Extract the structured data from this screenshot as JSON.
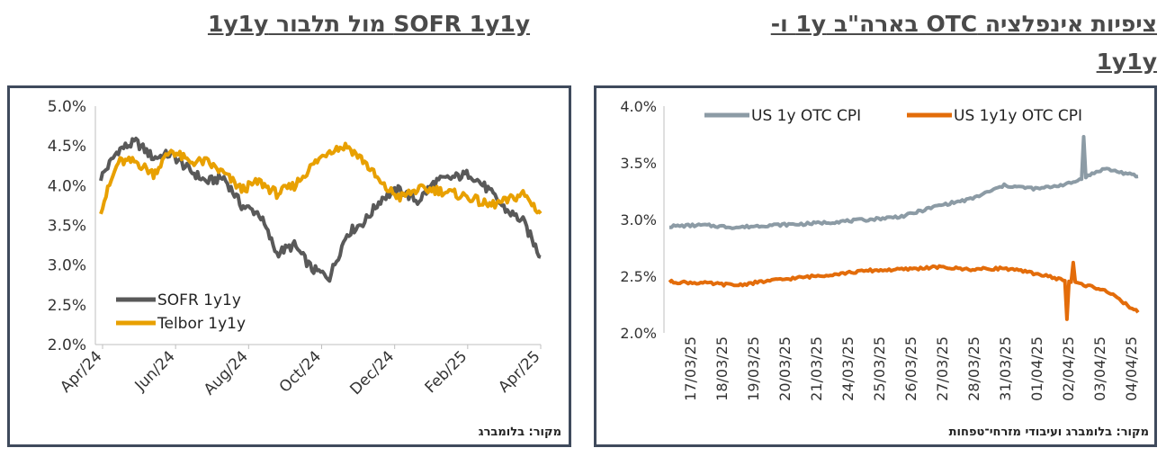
{
  "titles": {
    "left": "SOFR 1y1y מול תלבור 1y1y",
    "right_line1": "ציפיות אינפלציה OTC בארה\"ב 1y ו-",
    "right_line2": "1y1y"
  },
  "sources": {
    "left": "מקור: בלומברג",
    "right": "מקור: בלומברג ועיבודי מזרחי־טפחות"
  },
  "colors": {
    "gray": "#595959",
    "orange": "#E8A000",
    "blue_gray": "#8C9BA5",
    "dark_orange": "#E36C0A",
    "frame": "#3f4a5c"
  },
  "chart_data": [
    {
      "type": "line",
      "title": "SOFR 1y1y מול תלבור 1y1y",
      "x": [
        "2024-04-01",
        "2024-04-15",
        "2024-05-01",
        "2024-05-15",
        "2024-06-01",
        "2024-06-15",
        "2024-07-01",
        "2024-07-15",
        "2024-08-01",
        "2024-08-15",
        "2024-09-01",
        "2024-09-15",
        "2024-10-01",
        "2024-10-15",
        "2024-11-01",
        "2024-11-15",
        "2024-12-01",
        "2024-12-15",
        "2025-01-01",
        "2025-01-15",
        "2025-02-01",
        "2025-02-15",
        "2025-03-01",
        "2025-03-15",
        "2025-04-01",
        "2025-04-08"
      ],
      "x_ticks": [
        "Apr/24",
        "Jun/24",
        "Aug/24",
        "Oct/24",
        "Dec/24",
        "Feb/25",
        "Apr/25"
      ],
      "y_ticks": [
        "5.0%",
        "4.5%",
        "4.0%",
        "3.5%",
        "3.0%",
        "2.5%",
        "2.0%"
      ],
      "ylim": [
        2.0,
        5.0
      ],
      "legend": "left-bottom",
      "series": [
        {
          "name": "SOFR 1y1y",
          "color": "#595959",
          "values": [
            4.1,
            4.45,
            4.55,
            4.35,
            4.4,
            4.2,
            4.05,
            4.1,
            3.75,
            3.65,
            3.15,
            3.25,
            2.95,
            2.85,
            3.4,
            3.55,
            3.85,
            3.95,
            3.8,
            4.05,
            4.1,
            4.15,
            3.95,
            3.7,
            3.55,
            3.1
          ]
        },
        {
          "name": "Telbor 1y1y",
          "color": "#E8A000",
          "values": [
            3.7,
            4.3,
            4.3,
            4.15,
            4.45,
            4.3,
            4.3,
            4.15,
            3.95,
            4.05,
            3.9,
            4.0,
            4.25,
            4.45,
            4.5,
            4.3,
            4.0,
            3.85,
            3.95,
            3.95,
            3.9,
            3.85,
            3.75,
            3.8,
            3.9,
            3.65
          ]
        }
      ]
    },
    {
      "type": "line",
      "title": "ציפיות אינפלציה OTC בארה\"ב 1y ו-1y1y",
      "x": [
        "17/03/25",
        "18/03/25",
        "19/03/25",
        "20/03/25",
        "21/03/25",
        "24/03/25",
        "25/03/25",
        "26/03/25",
        "27/03/25",
        "28/03/25",
        "31/03/25",
        "01/04/25",
        "02/04/25",
        "03/04/25",
        "04/04/25"
      ],
      "y_ticks": [
        "4.0%",
        "3.5%",
        "3.0%",
        "2.5%",
        "2.0%"
      ],
      "ylim": [
        2.0,
        4.0
      ],
      "legend": "top",
      "series": [
        {
          "name": "US 1y OTC CPI",
          "color": "#8C9BA5",
          "values": [
            2.94,
            2.95,
            2.93,
            2.95,
            2.96,
            2.98,
            3.0,
            3.03,
            3.12,
            3.18,
            3.3,
            3.27,
            3.32,
            3.45,
            3.38
          ]
        },
        {
          "name": "US 1y1y OTC CPI",
          "color": "#E36C0A",
          "values": [
            2.45,
            2.44,
            2.42,
            2.46,
            2.49,
            2.52,
            2.55,
            2.56,
            2.58,
            2.56,
            2.57,
            2.52,
            2.45,
            2.38,
            2.18
          ]
        }
      ]
    }
  ]
}
